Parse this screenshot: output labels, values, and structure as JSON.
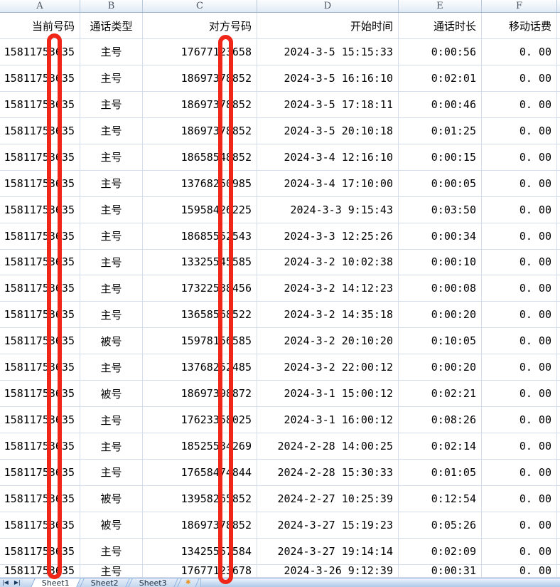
{
  "column_headers": [
    "A",
    "B",
    "C",
    "D",
    "E",
    "F"
  ],
  "table": {
    "column_keys": [
      "current-number",
      "call-type",
      "other-number",
      "start-time",
      "duration",
      "fee"
    ],
    "field_headers": [
      "当前号码",
      "通话类型",
      "对方号码",
      "开始时间",
      "通话时长",
      "移动话费"
    ],
    "rows": [
      [
        "15811753635",
        "主号",
        "17677123658",
        "2024-3-5 15:15:33",
        "0:00:56",
        "0. 00"
      ],
      [
        "15811753635",
        "主号",
        "18697378852",
        "2024-3-5 16:16:10",
        "0:02:01",
        "0. 00"
      ],
      [
        "15811753635",
        "主号",
        "18697378852",
        "2024-3-5 17:18:11",
        "0:00:46",
        "0. 00"
      ],
      [
        "15811753635",
        "主号",
        "18697378852",
        "2024-3-5 20:10:18",
        "0:01:25",
        "0. 00"
      ],
      [
        "15811753635",
        "主号",
        "18658548852",
        "2024-3-4 12:16:10",
        "0:00:15",
        "0. 00"
      ],
      [
        "15811753635",
        "主号",
        "13768250985",
        "2024-3-4 17:10:00",
        "0:00:05",
        "0. 00"
      ],
      [
        "15811753635",
        "主号",
        "15958426225",
        "2024-3-3 9:15:43",
        "0:03:50",
        "0. 00"
      ],
      [
        "15811753635",
        "主号",
        "18685552543",
        "2024-3-3 12:25:26",
        "0:00:34",
        "0. 00"
      ],
      [
        "15811753635",
        "主号",
        "13325545585",
        "2024-3-2 10:02:38",
        "0:00:10",
        "0. 00"
      ],
      [
        "15811753635",
        "主号",
        "17322538456",
        "2024-3-2 14:12:23",
        "0:00:08",
        "0. 00"
      ],
      [
        "15811753635",
        "主号",
        "13658568522",
        "2024-3-2 14:35:18",
        "0:00:20",
        "0. 00"
      ],
      [
        "15811753635",
        "被号",
        "15978156585",
        "2024-3-2 20:10:20",
        "0:10:05",
        "0. 00"
      ],
      [
        "15811753635",
        "主号",
        "13768252485",
        "2024-3-2 22:00:12",
        "0:00:20",
        "0. 00"
      ],
      [
        "15811753635",
        "被号",
        "18697398872",
        "2024-3-1 15:00:12",
        "0:02:21",
        "0. 00"
      ],
      [
        "15811753635",
        "主号",
        "17623358025",
        "2024-3-1 16:00:12",
        "0:08:26",
        "0. 00"
      ],
      [
        "15811753635",
        "主号",
        "18525534269",
        "2024-2-28 14:00:25",
        "0:02:14",
        "0. 00"
      ],
      [
        "15811753635",
        "主号",
        "17658474844",
        "2024-2-28 15:30:33",
        "0:01:05",
        "0. 00"
      ],
      [
        "15811753635",
        "被号",
        "13958265852",
        "2024-2-27 10:25:39",
        "0:12:54",
        "0. 00"
      ],
      [
        "15811753635",
        "被号",
        "18697378852",
        "2024-3-27 15:19:23",
        "0:05:26",
        "0. 00"
      ],
      [
        "15811753635",
        "主号",
        "13425557584",
        "2024-3-27 19:14:14",
        "0:02:09",
        "0. 00"
      ],
      [
        "15811753635",
        "主号",
        "17677123678",
        "2024-3-26 9:12:39",
        "0:00:31",
        "0. 00"
      ]
    ]
  },
  "sheet_tabs": {
    "tabs": [
      "Sheet1",
      "Sheet2",
      "Sheet3"
    ],
    "active_tab": "Sheet1",
    "insert_tab_glyph": "✱"
  },
  "tab_nav": {
    "first_glyph": "|◀",
    "last_glyph": "▶|"
  },
  "annotation": {
    "color": "#f02718"
  }
}
